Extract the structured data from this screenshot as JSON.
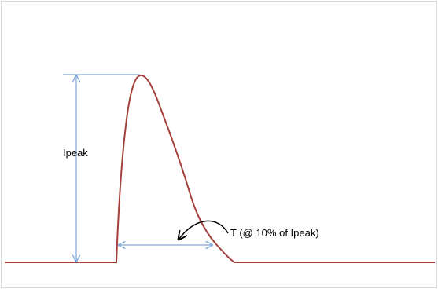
{
  "diagram": {
    "peak_label": "Ipeak",
    "width_label": "T (@ 10% of Ipeak)",
    "colors": {
      "pulse": "#a5413d",
      "dimension": "#7ea6d6",
      "annotation_arrow": "#000000",
      "frame": "#d9d9d9"
    }
  }
}
